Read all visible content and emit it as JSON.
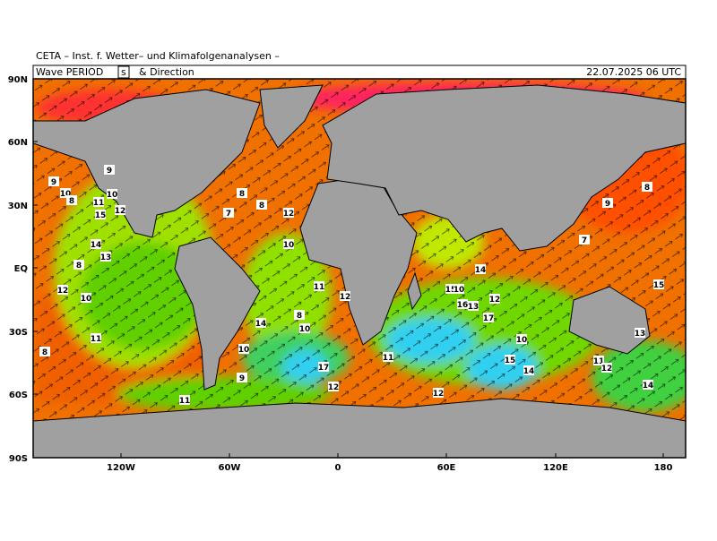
{
  "header": {
    "source": "CETA – Inst. f. Wetter– und Klimafolgenanalysen –",
    "field": "Wave PERIOD",
    "unit": "s",
    "field_suffix": "& Direction",
    "valid": "22.07.2025 06 UTC"
  },
  "map": {
    "lat_labels": [
      "90N",
      "60N",
      "30N",
      "EQ",
      "30S",
      "60S",
      "90S"
    ],
    "lon_labels": [
      "120W",
      "60W",
      "0",
      "60E",
      "120E",
      "180"
    ],
    "period_labels": [
      9,
      10,
      11,
      15,
      14,
      13,
      12,
      10,
      8,
      9,
      11,
      10,
      12,
      8,
      7,
      8,
      10,
      12,
      8,
      10,
      11,
      12,
      8,
      10,
      17,
      12,
      9,
      14,
      11,
      12,
      15,
      10,
      16,
      13,
      17,
      14,
      12,
      10,
      15,
      14,
      13,
      11,
      12,
      14,
      7,
      8,
      9,
      8,
      15,
      11
    ]
  }
}
